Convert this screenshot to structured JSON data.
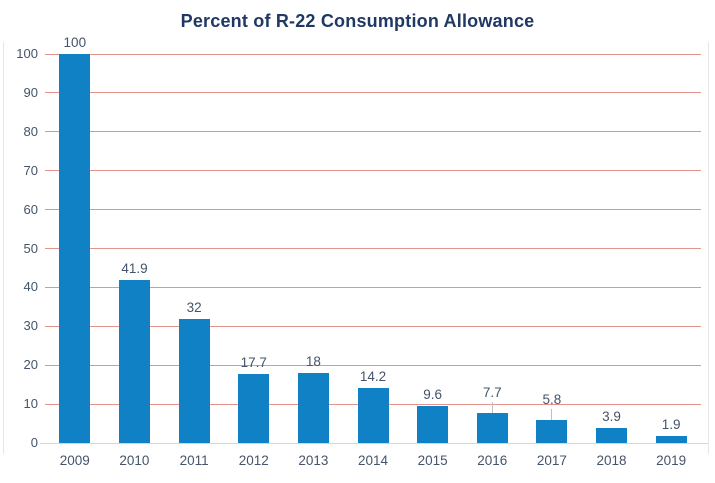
{
  "title": "Percent of R-22 Consumption Allowance",
  "colors": {
    "bar": "#1181C6",
    "gridline": "#E5948C",
    "zero_line": "#D6D6D6",
    "axis_label": "#44546A",
    "data_label": "#44546A",
    "title": "#1F3864",
    "leader_line": "#BFBFBF",
    "chart_border": "#E6E6E6",
    "background": "#FFFFFF"
  },
  "chart_data": {
    "type": "bar",
    "title": "Percent of R-22 Consumption Allowance",
    "categories": [
      "2009",
      "2010",
      "2011",
      "2012",
      "2013",
      "2014",
      "2015",
      "2016",
      "2017",
      "2018",
      "2019"
    ],
    "values": [
      100,
      41.9,
      32,
      17.7,
      18,
      14.2,
      9.6,
      7.7,
      5.8,
      3.9,
      1.9
    ],
    "data_labels": [
      "100",
      "41.9",
      "32",
      "17.7",
      "18",
      "14.2",
      "9.6",
      "7.7",
      "5.8",
      "3.9",
      "1.9"
    ],
    "leader_lines": [
      false,
      false,
      false,
      false,
      false,
      false,
      false,
      true,
      true,
      false,
      false
    ],
    "xlabel": "",
    "ylabel": "",
    "ylim": [
      0,
      100
    ],
    "ytick_step": 10,
    "ytick_labels": [
      "0",
      "10",
      "20",
      "30",
      "40",
      "50",
      "60",
      "70",
      "80",
      "90",
      "100"
    ],
    "grid": true,
    "gridline_orientation": "horizontal",
    "legend": false
  }
}
